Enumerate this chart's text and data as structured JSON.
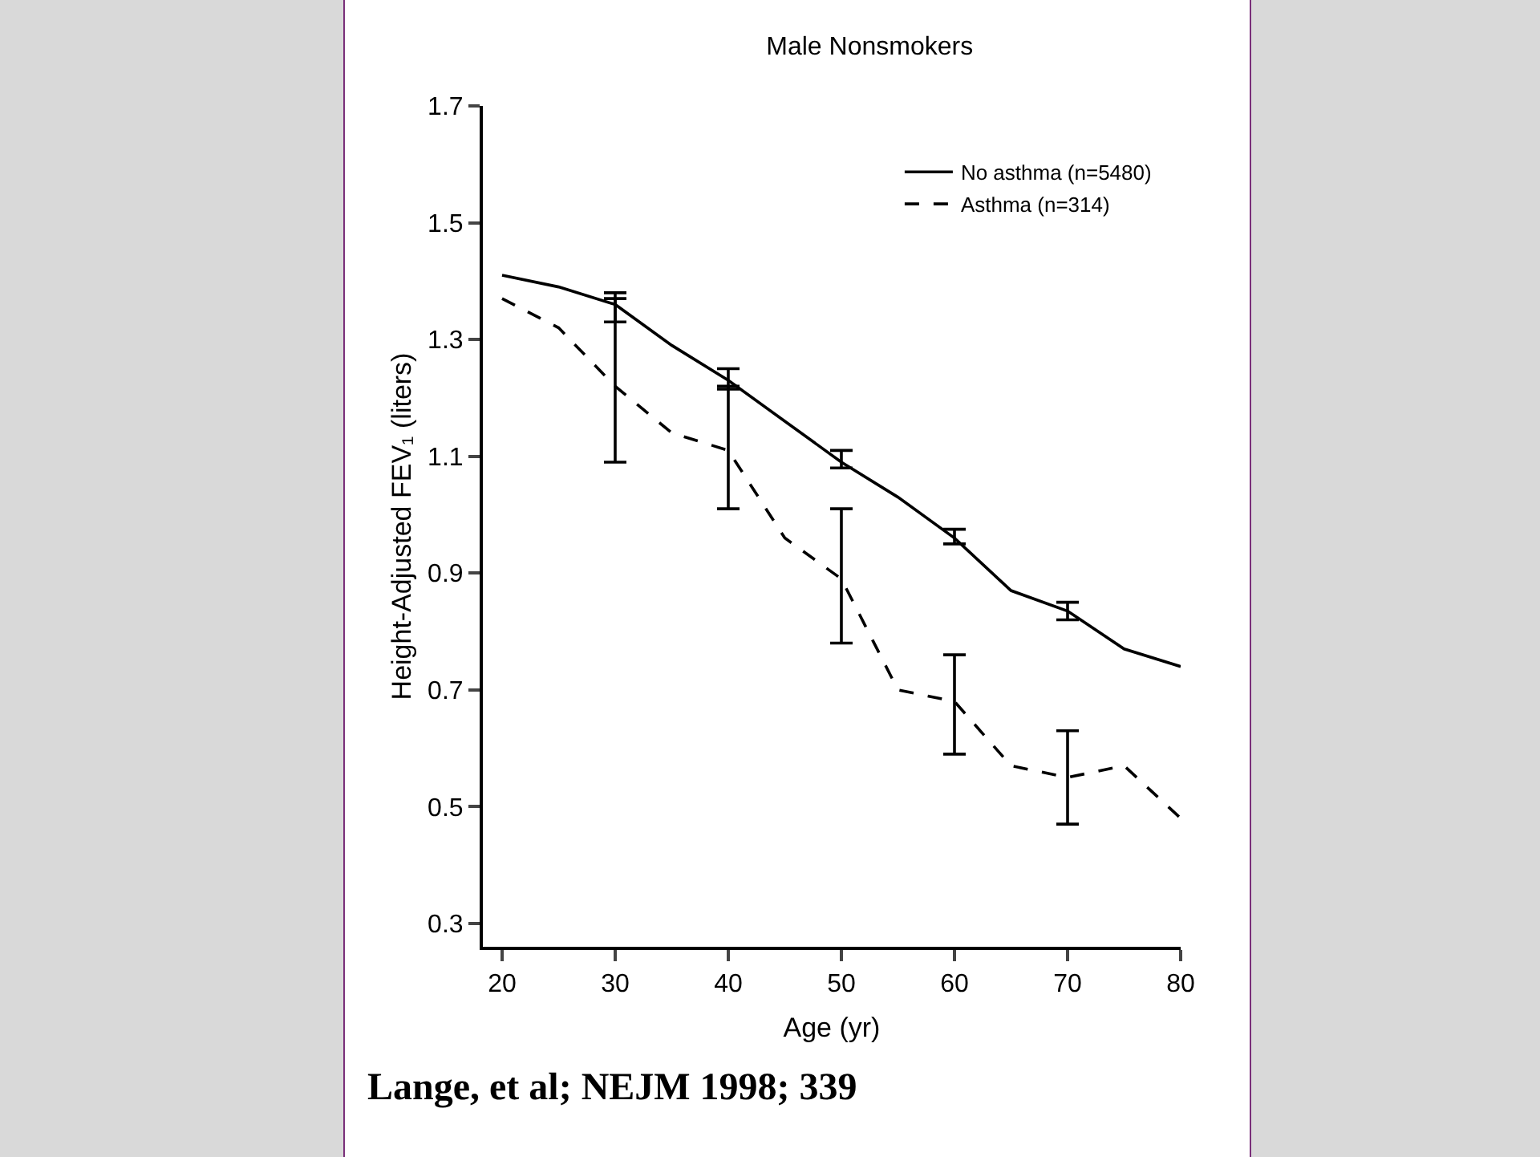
{
  "chart_data": {
    "type": "line",
    "title": "Male Nonsmokers",
    "xlabel": "Age (yr)",
    "ylabel": "Height-Adjusted FEV₁ (liters)",
    "x": [
      20,
      25,
      30,
      35,
      40,
      45,
      50,
      55,
      60,
      65,
      70,
      75,
      80
    ],
    "series": [
      {
        "name": "No asthma (n=5480)",
        "color": "#000000",
        "line_style": "solid",
        "values": [
          1.41,
          1.39,
          1.36,
          1.29,
          1.23,
          1.16,
          1.09,
          1.03,
          0.96,
          0.87,
          0.835,
          0.77,
          0.74
        ],
        "errors": [
          null,
          null,
          [
            1.33,
            1.38
          ],
          null,
          [
            1.215,
            1.25
          ],
          null,
          [
            1.08,
            1.11
          ],
          null,
          [
            0.95,
            0.975
          ],
          null,
          [
            0.82,
            0.85
          ],
          null,
          null
        ]
      },
      {
        "name": "Asthma (n=314)",
        "color": "#000000",
        "line_style": "dashed",
        "values": [
          1.37,
          1.32,
          1.22,
          1.14,
          1.11,
          0.96,
          0.89,
          0.7,
          0.68,
          0.57,
          0.55,
          0.57,
          0.48
        ],
        "errors": [
          null,
          null,
          [
            1.09,
            1.37
          ],
          null,
          [
            1.01,
            1.22
          ],
          null,
          [
            0.78,
            1.01
          ],
          null,
          [
            0.59,
            0.76
          ],
          null,
          [
            0.47,
            0.63
          ],
          null,
          null
        ]
      }
    ],
    "xlim": [
      18.3,
      80
    ],
    "xticks": [
      20,
      30,
      40,
      50,
      60,
      70,
      80
    ],
    "ylim": [
      0.26,
      1.7
    ],
    "yticks": [
      0.3,
      0.5,
      0.7,
      0.9,
      1.1,
      1.3,
      1.5,
      1.7
    ],
    "grid": false,
    "legend": "top right",
    "marker": "none",
    "annotations": [
      "Lange, et al; NEJM 1998; 339"
    ]
  }
}
